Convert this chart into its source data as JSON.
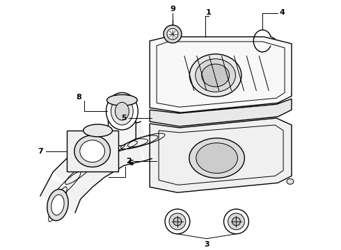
{
  "background_color": "#ffffff",
  "line_color": "#000000",
  "label_color": "#000000",
  "fig_width": 4.9,
  "fig_height": 3.6,
  "dpi": 100
}
